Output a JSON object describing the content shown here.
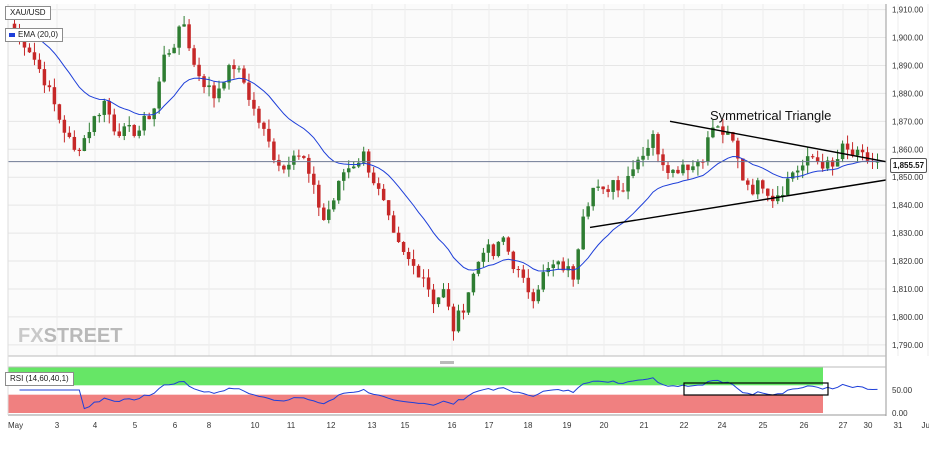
{
  "legend": {
    "symbol": "XAU/USD",
    "ema_label": "EMA (20,0)",
    "rsi_label": "RSI (14,60,40,1)"
  },
  "annotation": {
    "pattern_label": "Symmetrical Triangle"
  },
  "watermark": {
    "part1": "FX",
    "part2": "STREET"
  },
  "last_price_label": "1,855.57",
  "colors": {
    "up": "#2e7d32",
    "down": "#c62828",
    "ema": "#1e3fd9",
    "rsi": "#1e3fd9",
    "rsi_high_zone": "#66e666",
    "rsi_low_zone": "#f08080",
    "current_line": "#6f7a94"
  },
  "chart_data": [
    {
      "type": "candlestick",
      "title": "",
      "series": [
        {
          "name": "XAU/USD"
        },
        {
          "name": "EMA (20,0)"
        }
      ],
      "ylim": [
        1786,
        1912
      ],
      "y_ticks": [
        "1,910.00",
        "1,900.00",
        "1,890.00",
        "1,880.00",
        "1,870.00",
        "1,860.00",
        "1,850.00",
        "1,840.00",
        "1,830.00",
        "1,820.00",
        "1,810.00",
        "1,800.00",
        "1,790.00"
      ],
      "x_ticks": [
        "May",
        "3",
        "4",
        "5",
        "6",
        "8",
        "10",
        "11",
        "12",
        "13",
        "15",
        "16",
        "17",
        "18",
        "19",
        "20",
        "21",
        "22",
        "24",
        "25",
        "26",
        "27",
        "30",
        "31",
        "Jun"
      ],
      "current_price": 1855.57,
      "close_path": [
        [
          0,
          1903
        ],
        [
          3,
          1896
        ],
        [
          6,
          1885
        ],
        [
          9,
          1871
        ],
        [
          12,
          1859
        ],
        [
          14,
          1864
        ],
        [
          16,
          1871
        ],
        [
          18,
          1877
        ],
        [
          20,
          1868
        ],
        [
          22,
          1866
        ],
        [
          25,
          1867
        ],
        [
          28,
          1875
        ],
        [
          30,
          1893
        ],
        [
          32,
          1898
        ],
        [
          34,
          1905
        ],
        [
          36,
          1890
        ],
        [
          38,
          1884
        ],
        [
          40,
          1879
        ],
        [
          42,
          1886
        ],
        [
          44,
          1890
        ],
        [
          46,
          1884
        ],
        [
          48,
          1874
        ],
        [
          50,
          1866
        ],
        [
          52,
          1858
        ],
        [
          54,
          1853
        ],
        [
          56,
          1860
        ],
        [
          58,
          1856
        ],
        [
          60,
          1845
        ],
        [
          62,
          1835
        ],
        [
          64,
          1842
        ],
        [
          66,
          1852
        ],
        [
          68,
          1855
        ],
        [
          70,
          1858
        ],
        [
          72,
          1849
        ],
        [
          74,
          1840
        ],
        [
          76,
          1828
        ],
        [
          78,
          1822
        ],
        [
          80,
          1818
        ],
        [
          82,
          1815
        ],
        [
          84,
          1806
        ],
        [
          86,
          1809
        ],
        [
          88,
          1796
        ],
        [
          90,
          1804
        ],
        [
          92,
          1815
        ],
        [
          94,
          1825
        ],
        [
          96,
          1822
        ],
        [
          98,
          1828
        ],
        [
          100,
          1819
        ],
        [
          102,
          1812
        ],
        [
          104,
          1808
        ],
        [
          106,
          1815
        ],
        [
          108,
          1818
        ],
        [
          110,
          1818
        ],
        [
          112,
          1815
        ],
        [
          114,
          1838
        ],
        [
          116,
          1846
        ],
        [
          118,
          1844
        ],
        [
          120,
          1849
        ],
        [
          122,
          1846
        ],
        [
          124,
          1855
        ],
        [
          126,
          1859
        ],
        [
          128,
          1864
        ],
        [
          130,
          1856
        ],
        [
          132,
          1852
        ],
        [
          134,
          1855
        ],
        [
          136,
          1854
        ],
        [
          138,
          1858
        ],
        [
          140,
          1868
        ],
        [
          142,
          1866
        ],
        [
          144,
          1862
        ],
        [
          146,
          1850
        ],
        [
          148,
          1846
        ],
        [
          150,
          1848
        ],
        [
          152,
          1843
        ],
        [
          154,
          1846
        ],
        [
          156,
          1852
        ],
        [
          158,
          1854
        ],
        [
          160,
          1857
        ],
        [
          162,
          1855
        ],
        [
          164,
          1853
        ],
        [
          166,
          1860
        ],
        [
          168,
          1858
        ],
        [
          170,
          1857
        ],
        [
          172,
          1855.57
        ]
      ],
      "triangle_upper": [
        [
          1870,
          1855.57
        ]
      ],
      "triangle_lower": [
        [
          1832,
          1849
        ]
      ]
    },
    {
      "type": "line",
      "title": "",
      "series": [
        {
          "name": "RSI (14,60,40,1)"
        }
      ],
      "ylim": [
        0,
        100
      ],
      "y_ticks": [
        "50.00",
        "0.00"
      ],
      "zones": {
        "upper": [
          60,
          100
        ],
        "lower": [
          0,
          40
        ]
      }
    }
  ]
}
